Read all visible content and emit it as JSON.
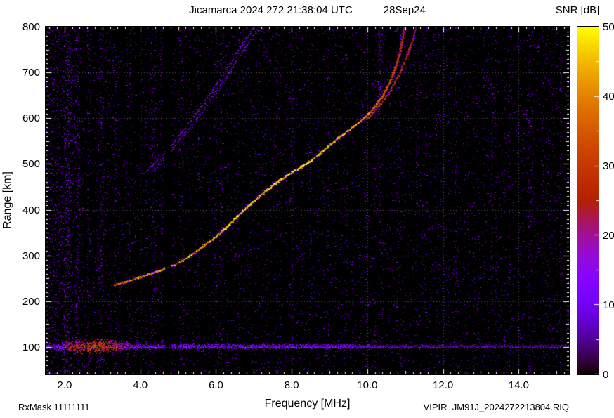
{
  "header": {
    "title": "Jicamarca 2024 272 21:38:04 UTC",
    "date": "28Sep24",
    "colorbar_title": "SNR [dB]"
  },
  "axes": {
    "x_label": "Frequency [MHz]",
    "y_label": "Range [km]",
    "x_tick_labels": [
      "2.0",
      "4.0",
      "6.0",
      "8.0",
      "10.0",
      "12.0",
      "14.0"
    ],
    "y_tick_labels": [
      "100",
      "200",
      "300",
      "400",
      "500",
      "600",
      "700",
      "800"
    ],
    "colorbar_tick_labels": [
      "0",
      "10",
      "20",
      "30",
      "40",
      "50"
    ]
  },
  "footer": {
    "left": "RxMask 11111111",
    "right": "VIPIR  JM91J_2024272213804.RIQ"
  },
  "chart_data": {
    "type": "heatmap",
    "title": "Jicamarca 2024 272 21:38:04 UTC",
    "subtitle": "28Sep24",
    "xlabel": "Frequency [MHz]",
    "ylabel": "Range [km]",
    "zlabel": "SNR [dB]",
    "xlim": [
      1.5,
      15.33
    ],
    "ylim": [
      40,
      800
    ],
    "zlim": [
      0,
      50
    ],
    "x_ticks": [
      2,
      4,
      6,
      8,
      10,
      12,
      14
    ],
    "y_ticks": [
      100,
      200,
      300,
      400,
      500,
      600,
      700,
      800
    ],
    "z_ticks": [
      0,
      10,
      20,
      30,
      40,
      50
    ],
    "grid": true,
    "background": "#000000",
    "colormap": "gnuplot black-violet-purple-red-orange-yellow",
    "series": [
      {
        "name": "F-layer O-mode trace",
        "kind": "main",
        "units": "[MHz, km, dB]",
        "points": [
          [
            3.3,
            236,
            33
          ],
          [
            3.55,
            241,
            37
          ],
          [
            3.8,
            248,
            39
          ],
          [
            4.1,
            256,
            40
          ],
          [
            4.4,
            264,
            40
          ],
          [
            4.7,
            274,
            41
          ],
          [
            5.0,
            284,
            41
          ],
          [
            5.3,
            300,
            42
          ],
          [
            5.6,
            317,
            42
          ],
          [
            5.9,
            336,
            43
          ],
          [
            6.2,
            357,
            43
          ],
          [
            6.5,
            381,
            44
          ],
          [
            6.8,
            406,
            44
          ],
          [
            7.1,
            427,
            45
          ],
          [
            7.4,
            448,
            46
          ],
          [
            7.7,
            466,
            47
          ],
          [
            8.0,
            482,
            48
          ],
          [
            8.37,
            500,
            48
          ],
          [
            8.7,
            521,
            46
          ],
          [
            9.0,
            542,
            45
          ],
          [
            9.3,
            562,
            43
          ],
          [
            9.6,
            581,
            42
          ],
          [
            9.9,
            600,
            40
          ],
          [
            10.15,
            622,
            38
          ],
          [
            10.4,
            650,
            35
          ],
          [
            10.6,
            682,
            32
          ],
          [
            10.75,
            715,
            29
          ],
          [
            10.87,
            750,
            26
          ],
          [
            10.93,
            778,
            23
          ],
          [
            10.97,
            800,
            21
          ]
        ]
      },
      {
        "name": "F-layer X-mode trace",
        "kind": "x",
        "units": "[MHz, km, dB]",
        "points": [
          [
            10.0,
            600,
            27
          ],
          [
            10.3,
            628,
            28
          ],
          [
            10.6,
            660,
            28
          ],
          [
            10.85,
            700,
            27
          ],
          [
            11.05,
            740,
            25
          ],
          [
            11.2,
            775,
            23
          ],
          [
            11.28,
            800,
            21
          ]
        ]
      },
      {
        "name": "second-hop trace",
        "kind": "hop",
        "units": "[MHz, km, dB]",
        "points": [
          [
            4.15,
            483,
            13
          ],
          [
            4.45,
            508,
            14
          ],
          [
            4.75,
            536,
            15
          ],
          [
            5.05,
            566,
            15
          ],
          [
            5.35,
            598,
            15
          ],
          [
            5.65,
            632,
            15
          ],
          [
            5.95,
            668,
            14
          ],
          [
            6.25,
            706,
            14
          ],
          [
            6.55,
            744,
            13
          ],
          [
            6.85,
            782,
            12
          ],
          [
            6.98,
            800,
            12
          ]
        ]
      },
      {
        "name": "second-hop trace companion",
        "kind": "hop",
        "units": "[MHz, km, dB]",
        "points": [
          [
            4.34,
            490,
            11
          ],
          [
            4.64,
            515,
            12
          ],
          [
            4.94,
            543,
            13
          ],
          [
            5.24,
            573,
            13
          ],
          [
            5.54,
            605,
            13
          ],
          [
            5.84,
            639,
            13
          ],
          [
            6.14,
            675,
            12
          ],
          [
            6.44,
            713,
            12
          ],
          [
            6.74,
            751,
            11
          ],
          [
            7.04,
            789,
            10
          ],
          [
            7.12,
            800,
            10
          ]
        ]
      },
      {
        "name": "E-region band",
        "kind": "eband",
        "center_km": 102,
        "units": "[MHz, dB, halfwidth_km]",
        "profile": [
          [
            1.55,
            12,
            9
          ],
          [
            1.9,
            16,
            11
          ],
          [
            2.2,
            26,
            16
          ],
          [
            2.5,
            32,
            19
          ],
          [
            2.8,
            34,
            20
          ],
          [
            3.1,
            31,
            18
          ],
          [
            3.4,
            26,
            15
          ],
          [
            3.7,
            18,
            11
          ],
          [
            4.0,
            14,
            9
          ],
          [
            4.5,
            13,
            8
          ],
          [
            5.5,
            13,
            8
          ],
          [
            6.5,
            12,
            8
          ],
          [
            7.5,
            12,
            8
          ],
          [
            8.5,
            12,
            7
          ],
          [
            9.5,
            11,
            7
          ],
          [
            10.2,
            9,
            6
          ],
          [
            11.0,
            7,
            6
          ],
          [
            12.0,
            7,
            5
          ],
          [
            13.0,
            6,
            5
          ],
          [
            14.0,
            6,
            5
          ],
          [
            15.3,
            6,
            5
          ]
        ]
      }
    ],
    "rfi_stripes": [
      {
        "f": 1.78,
        "w": 0.55,
        "mult": 2.2
      },
      {
        "f": 2.08,
        "w": 0.13,
        "mult": 5.5
      },
      {
        "f": 2.33,
        "w": 0.1,
        "mult": 4.5
      },
      {
        "f": 2.62,
        "w": 0.07,
        "mult": 2.5
      },
      {
        "f": 2.95,
        "w": 0.08,
        "mult": 3.0
      },
      {
        "f": 3.33,
        "w": 0.06,
        "mult": 2.2
      },
      {
        "f": 3.72,
        "w": 0.05,
        "mult": 1.8
      },
      {
        "f": 4.32,
        "w": 0.08,
        "mult": 2.8
      },
      {
        "f": 4.55,
        "w": 0.05,
        "mult": 1.8
      },
      {
        "f": 5.08,
        "w": 0.06,
        "mult": 2.0
      },
      {
        "f": 5.52,
        "w": 0.05,
        "mult": 1.8
      },
      {
        "f": 6.12,
        "w": 0.07,
        "mult": 2.2
      },
      {
        "f": 6.58,
        "w": 0.05,
        "mult": 1.8
      },
      {
        "f": 7.12,
        "w": 0.05,
        "mult": 1.7
      },
      {
        "f": 7.6,
        "w": 0.05,
        "mult": 1.6
      },
      {
        "f": 8.02,
        "w": 0.05,
        "mult": 1.7
      },
      {
        "f": 8.48,
        "w": 0.05,
        "mult": 1.6
      },
      {
        "f": 8.95,
        "w": 0.06,
        "mult": 1.9
      },
      {
        "f": 9.42,
        "w": 0.05,
        "mult": 1.6
      },
      {
        "f": 9.95,
        "w": 0.05,
        "mult": 1.6
      },
      {
        "f": 10.32,
        "w": 0.07,
        "mult": 2.4,
        "y0": 620,
        "y1": 800
      },
      {
        "f": 10.32,
        "w": 0.05,
        "mult": 1.4
      },
      {
        "f": 10.85,
        "w": 0.05,
        "mult": 1.6
      },
      {
        "f": 11.3,
        "w": 0.05,
        "mult": 1.7
      },
      {
        "f": 11.85,
        "w": 0.05,
        "mult": 1.6
      },
      {
        "f": 12.32,
        "w": 0.06,
        "mult": 1.8
      },
      {
        "f": 12.8,
        "w": 0.05,
        "mult": 1.5
      },
      {
        "f": 13.28,
        "w": 0.05,
        "mult": 1.6
      },
      {
        "f": 13.75,
        "w": 0.05,
        "mult": 1.5
      },
      {
        "f": 14.28,
        "w": 0.07,
        "mult": 2.0
      },
      {
        "f": 14.75,
        "w": 0.05,
        "mult": 1.6
      },
      {
        "f": 15.1,
        "w": 0.06,
        "mult": 1.8
      }
    ],
    "blank_columns": [
      {
        "f": 4.74,
        "w": 0.17,
        "alpha": 0.9
      },
      {
        "f": 4.98,
        "w": 0.06,
        "alpha": 0.6
      },
      {
        "f": 2.57,
        "w": 0.045,
        "alpha": 0.7
      }
    ],
    "noise": {
      "seed": 42424242,
      "per_column": 21,
      "stripe_density": 13
    }
  }
}
